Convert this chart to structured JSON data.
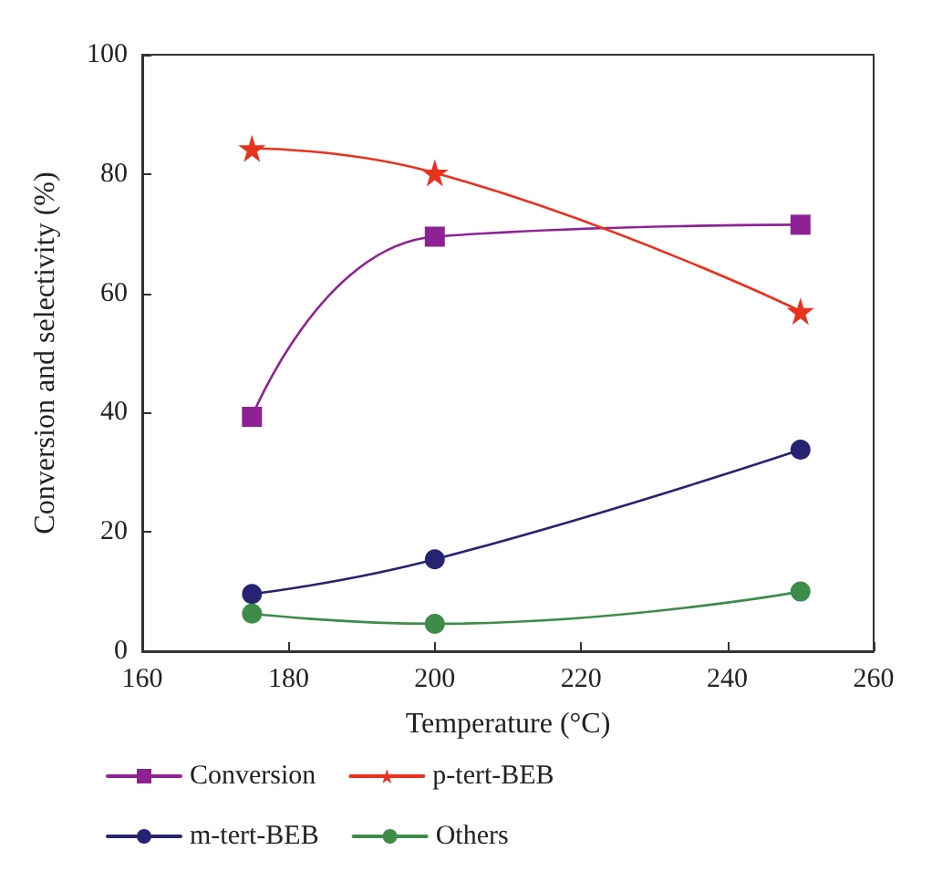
{
  "chart_data": {
    "type": "line",
    "xlabel": "Temperature (°C)",
    "ylabel": "Conversion and selectivity (%)",
    "x": [
      175,
      200,
      250
    ],
    "xlim": [
      160,
      260
    ],
    "xticks": [
      160,
      180,
      200,
      220,
      240,
      260
    ],
    "ylim": [
      0,
      100
    ],
    "yticks": [
      0,
      20,
      40,
      60,
      80,
      100
    ],
    "grid": false,
    "legend": "bottom",
    "line_style": "solid",
    "series": [
      {
        "name": "Conversion",
        "color": "#8e2294",
        "marker": "square",
        "values": [
          39.3,
          69.5,
          71.5
        ]
      },
      {
        "name": "p-tert-BEB",
        "color": "#e8321e",
        "marker": "star",
        "values": [
          84.3,
          80.2,
          57.0
        ]
      },
      {
        "name": "m-tert-BEB",
        "color": "#262372",
        "marker": "circle",
        "values": [
          9.6,
          15.4,
          33.8
        ]
      },
      {
        "name": "Others",
        "color": "#3d8c4a",
        "marker": "circle",
        "values": [
          6.3,
          4.6,
          10.0
        ]
      }
    ]
  }
}
